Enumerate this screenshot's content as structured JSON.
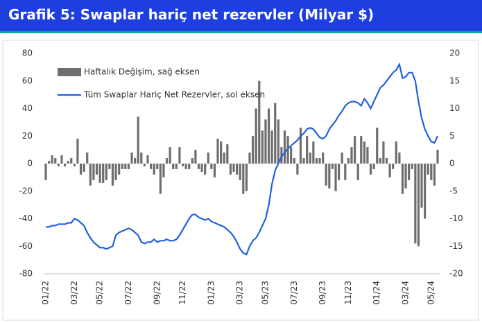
{
  "chart_data": {
    "type": "combo",
    "title": "Grafik 5: Swaplar hariç net rezervler (Milyar $)",
    "categories": [
      "01/22",
      null,
      null,
      null,
      null,
      null,
      null,
      null,
      null,
      "03/22",
      null,
      null,
      null,
      null,
      null,
      null,
      null,
      "05/22",
      null,
      null,
      null,
      null,
      null,
      null,
      null,
      null,
      "07/22",
      null,
      null,
      null,
      null,
      null,
      null,
      null,
      null,
      "09/22",
      null,
      null,
      null,
      null,
      null,
      null,
      null,
      "11/22",
      null,
      null,
      null,
      null,
      null,
      null,
      null,
      null,
      "01/23",
      null,
      null,
      null,
      null,
      null,
      null,
      null,
      null,
      "03/23",
      null,
      null,
      null,
      null,
      null,
      null,
      null,
      "05/23",
      null,
      null,
      null,
      null,
      null,
      null,
      null,
      null,
      "07/23",
      null,
      null,
      null,
      null,
      null,
      null,
      null,
      null,
      "09/23",
      null,
      null,
      null,
      null,
      null,
      null,
      null,
      "11/23",
      null,
      null,
      null,
      null,
      null,
      null,
      null,
      null,
      "01/24",
      null,
      null,
      null,
      null,
      null,
      null,
      null,
      null,
      "03/24",
      null,
      null,
      null,
      null,
      null,
      null,
      null,
      "05/24",
      null,
      null
    ],
    "series": [
      {
        "name": "Haftalık Değişim, sağ eksen",
        "color": "#6e6e6e",
        "type": "bar",
        "axis": "y2",
        "values": [
          -3,
          0.5,
          1.5,
          1,
          -0.5,
          1.5,
          -0.5,
          0.5,
          1,
          -0.5,
          4.5,
          -2,
          -1.5,
          2,
          -4,
          -3,
          -2,
          -3.5,
          -3.5,
          -3,
          -1,
          -4,
          -3,
          -2,
          -1,
          -1,
          -1,
          2,
          1,
          8.5,
          2,
          -0.5,
          1.5,
          -1,
          -2,
          -1,
          -5.5,
          -2.5,
          1,
          3,
          -1,
          -1,
          3,
          -0.5,
          -1,
          -1,
          1,
          2.5,
          -1,
          -1.5,
          -2,
          2,
          -1,
          -2.5,
          4.5,
          4,
          2,
          3.5,
          -2,
          -1.5,
          -2,
          -3,
          -5.5,
          -5,
          2,
          5,
          10,
          15,
          6,
          8,
          10,
          6,
          11,
          8,
          3,
          6,
          5,
          3,
          1,
          -2,
          6.5,
          1,
          5,
          2,
          4,
          1,
          1,
          2,
          -4,
          -4.5,
          -1,
          -5,
          -3,
          2,
          -3,
          1,
          3,
          5,
          -3,
          5,
          4,
          3,
          -2,
          -1,
          6.5,
          1,
          4,
          1,
          -2.5,
          -1,
          4,
          2,
          -5.5,
          -4.5,
          -3,
          -1,
          -14.5,
          -15,
          -8,
          -10,
          -2,
          -3,
          -4,
          2.5
        ]
      },
      {
        "name": "Tüm Swaplar Hariç Net Rezervler, sol eksen",
        "color": "#1f5fe0",
        "type": "line",
        "values": [
          -46,
          -46,
          -45,
          -45,
          -44,
          -44,
          -44,
          -43,
          -43,
          -40,
          -41,
          -43,
          -45,
          -50,
          -54,
          -57,
          -59,
          -61,
          -61,
          -62,
          -61,
          -60,
          -52,
          -50,
          -49,
          -48,
          -47,
          -48,
          -50,
          -52,
          -57,
          -58,
          -57,
          -57,
          -55,
          -57,
          -56,
          -56,
          -55,
          -56,
          -56,
          -55,
          -52,
          -48,
          -44,
          -40,
          -37,
          -37,
          -39,
          -40,
          -41,
          -40,
          -42,
          -43,
          -44,
          -45,
          -46,
          -48,
          -50,
          -53,
          -57,
          -62,
          -65,
          -66,
          -60,
          -56,
          -54,
          -50,
          -45,
          -40,
          -30,
          -15,
          -5,
          0,
          5,
          8,
          11,
          13,
          15,
          17,
          20,
          22,
          25,
          26,
          25,
          22,
          19,
          18,
          20,
          25,
          28,
          31,
          35,
          38,
          42,
          44,
          45,
          45,
          44,
          42,
          47,
          44,
          40,
          45,
          50,
          55,
          57,
          60,
          63,
          66,
          68,
          72,
          62,
          63,
          66,
          66,
          60,
          45,
          33,
          25,
          20,
          16,
          15,
          20
        ]
      }
    ],
    "ylim": [
      -80,
      80
    ],
    "yticks": [
      -80,
      -60,
      -40,
      -20,
      0,
      20,
      40,
      60,
      80
    ],
    "y2lim": [
      -20,
      20
    ],
    "y2ticks": [
      -20,
      -15,
      -10,
      -5,
      0,
      5,
      10,
      15,
      20
    ],
    "grid": false,
    "legend": "top-left"
  }
}
